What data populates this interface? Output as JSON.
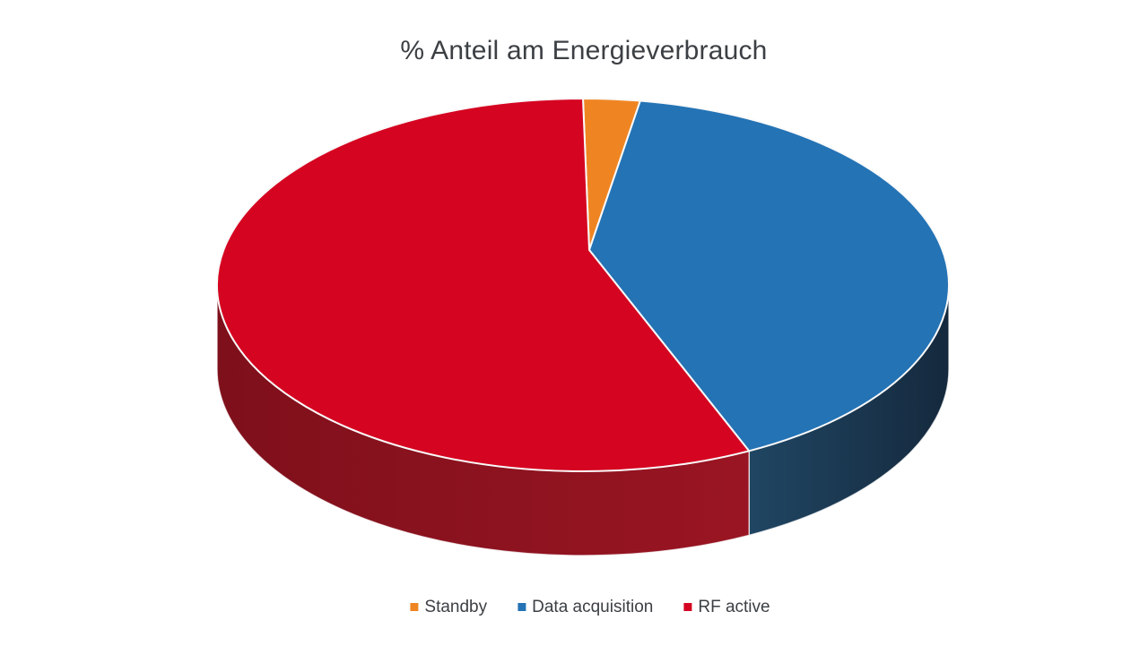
{
  "page": {
    "background_color": "#FFFFFF",
    "text_color": "#3C4044"
  },
  "chart_data": {
    "type": "pie",
    "projection": "3d",
    "title": "% Anteil am Energieverbrauch",
    "categories": [
      "Standby",
      "Data acquisition",
      "RF active"
    ],
    "values": [
      2.5,
      40,
      57.5
    ],
    "unit": "%",
    "colors": [
      "#EF8522",
      "#2473B5",
      "#D50521"
    ],
    "side_colors": [
      [
        "#B3631A",
        "#8F4F15"
      ],
      [
        "#204663",
        "#15293D"
      ],
      [
        "#7E101B",
        "#9A1523"
      ]
    ],
    "separator_color": "#FAFAFA",
    "start_angle": 0,
    "direction": "clockwise",
    "legend_position": "bottom",
    "labels_shown": false
  },
  "legend": {
    "items": [
      {
        "label": "Standby",
        "color": "#EF8522"
      },
      {
        "label": "Data acquisition",
        "color": "#2473B5"
      },
      {
        "label": "RF active",
        "color": "#D50521"
      }
    ]
  }
}
